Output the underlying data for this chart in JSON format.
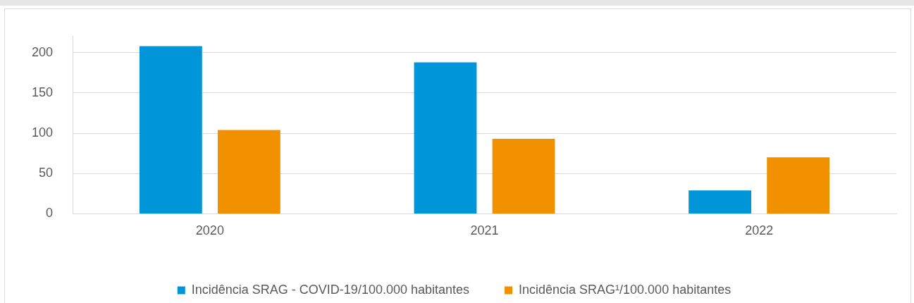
{
  "chart_data": {
    "type": "bar",
    "categories": [
      "2020",
      "2021",
      "2022"
    ],
    "series": [
      {
        "name": "Incidência SRAG - COVID-19/100.000 habitantes",
        "color": "#0095d9",
        "values": [
          208,
          188,
          29
        ]
      },
      {
        "name": "Incidência SRAG¹/100.000 habitantes",
        "color": "#f29100",
        "values": [
          104,
          93,
          70
        ]
      }
    ],
    "ylim": [
      0,
      220
    ],
    "yticks": [
      0,
      50,
      100,
      150,
      200
    ],
    "grid": "y",
    "legend": "bottom"
  }
}
